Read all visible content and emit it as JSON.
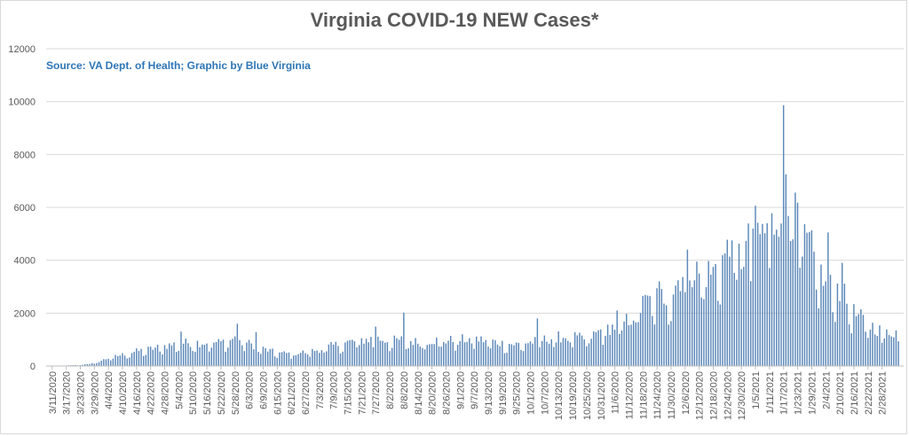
{
  "chart_data": {
    "type": "bar",
    "title": "Virginia COVID-19 NEW Cases*",
    "subtitle": "Source: VA Dept. of Health; Graphic by Blue Virginia",
    "xlabel": "",
    "ylabel": "",
    "ylim": [
      0,
      12000
    ],
    "yticks": [
      0,
      2000,
      4000,
      6000,
      8000,
      10000,
      12000
    ],
    "ytick_labels": [
      "0",
      "2000",
      "4000",
      "6000",
      "8000",
      "10000",
      "12000"
    ],
    "grid": true,
    "legend": "none",
    "bar_color": "#5b87b8",
    "tick_labels": [
      "3/11/2020",
      "3/17/2020",
      "3/23/2020",
      "3/29/2020",
      "4/4/2020",
      "4/10/2020",
      "4/16/2020",
      "4/22/2020",
      "4/28/2020",
      "5/4/2020",
      "5/10/2020",
      "5/16/2020",
      "5/22/2020",
      "5/28/2020",
      "6/3/2020",
      "6/9/2020",
      "6/15/2020",
      "6/21/2020",
      "6/27/2020",
      "7/3/2020",
      "7/9/2020",
      "7/15/2020",
      "7/21/2020",
      "7/27/2020",
      "8/2/2020",
      "8/8/2020",
      "8/14/2020",
      "8/20/2020",
      "8/26/2020",
      "9/1/2020",
      "9/7/2020",
      "9/13/2020",
      "9/19/2020",
      "9/25/2020",
      "10/1/2020",
      "10/7/2020",
      "10/13/2020",
      "10/19/2020",
      "10/25/2020",
      "10/31/2020",
      "11/6/2020",
      "11/12/2020",
      "11/18/2020",
      "11/24/2020",
      "11/30/2020",
      "12/6/2020",
      "12/12/2020",
      "12/18/2020",
      "12/24/2020",
      "12/30/2020",
      "1/5/2021",
      "1/11/2021",
      "1/17/2021",
      "1/23/2021",
      "1/29/2021",
      "2/4/2021",
      "2/10/2021",
      "2/16/2021",
      "2/22/2021",
      "2/28/2021"
    ],
    "start_date": "3/11/2020",
    "weekly_values": [
      5,
      20,
      40,
      110,
      300,
      430,
      560,
      650,
      760,
      860,
      900,
      880,
      900,
      1050,
      850,
      650,
      500,
      470,
      530,
      620,
      780,
      900,
      980,
      1050,
      950,
      1000,
      900,
      980,
      960,
      1000,
      1030,
      960,
      860,
      820,
      900,
      1000,
      1100,
      1100,
      1000,
      1350,
      1500,
      1750,
      2300,
      2600,
      2700,
      3800,
      3500,
      3550,
      4300,
      4100,
      5100,
      4900,
      6500,
      5300,
      4300,
      3000,
      2900,
      2000,
      1600,
      1300
    ],
    "spikes": [
      {
        "date": "5/5/2020",
        "value": 1300
      },
      {
        "date": "5/29/2020",
        "value": 1600
      },
      {
        "date": "6/6/2020",
        "value": 1280
      },
      {
        "date": "7/27/2020",
        "value": 1490
      },
      {
        "date": "8/8/2020",
        "value": 2020
      },
      {
        "date": "10/4/2020",
        "value": 1800
      },
      {
        "date": "11/7/2020",
        "value": 2100
      },
      {
        "date": "11/18/2020",
        "value": 2650
      },
      {
        "date": "11/25/2020",
        "value": 3200
      },
      {
        "date": "12/7/2020",
        "value": 4400
      },
      {
        "date": "12/26/2020",
        "value": 4750
      },
      {
        "date": "1/4/2021",
        "value": 5200
      },
      {
        "date": "1/10/2021",
        "value": 5400
      },
      {
        "date": "1/12/2021",
        "value": 5780
      },
      {
        "date": "1/17/2021",
        "value": 9860
      },
      {
        "date": "1/18/2021",
        "value": 7250
      },
      {
        "date": "1/23/2021",
        "value": 6180
      },
      {
        "date": "2/5/2021",
        "value": 5050
      },
      {
        "date": "2/11/2021",
        "value": 3900
      }
    ]
  }
}
